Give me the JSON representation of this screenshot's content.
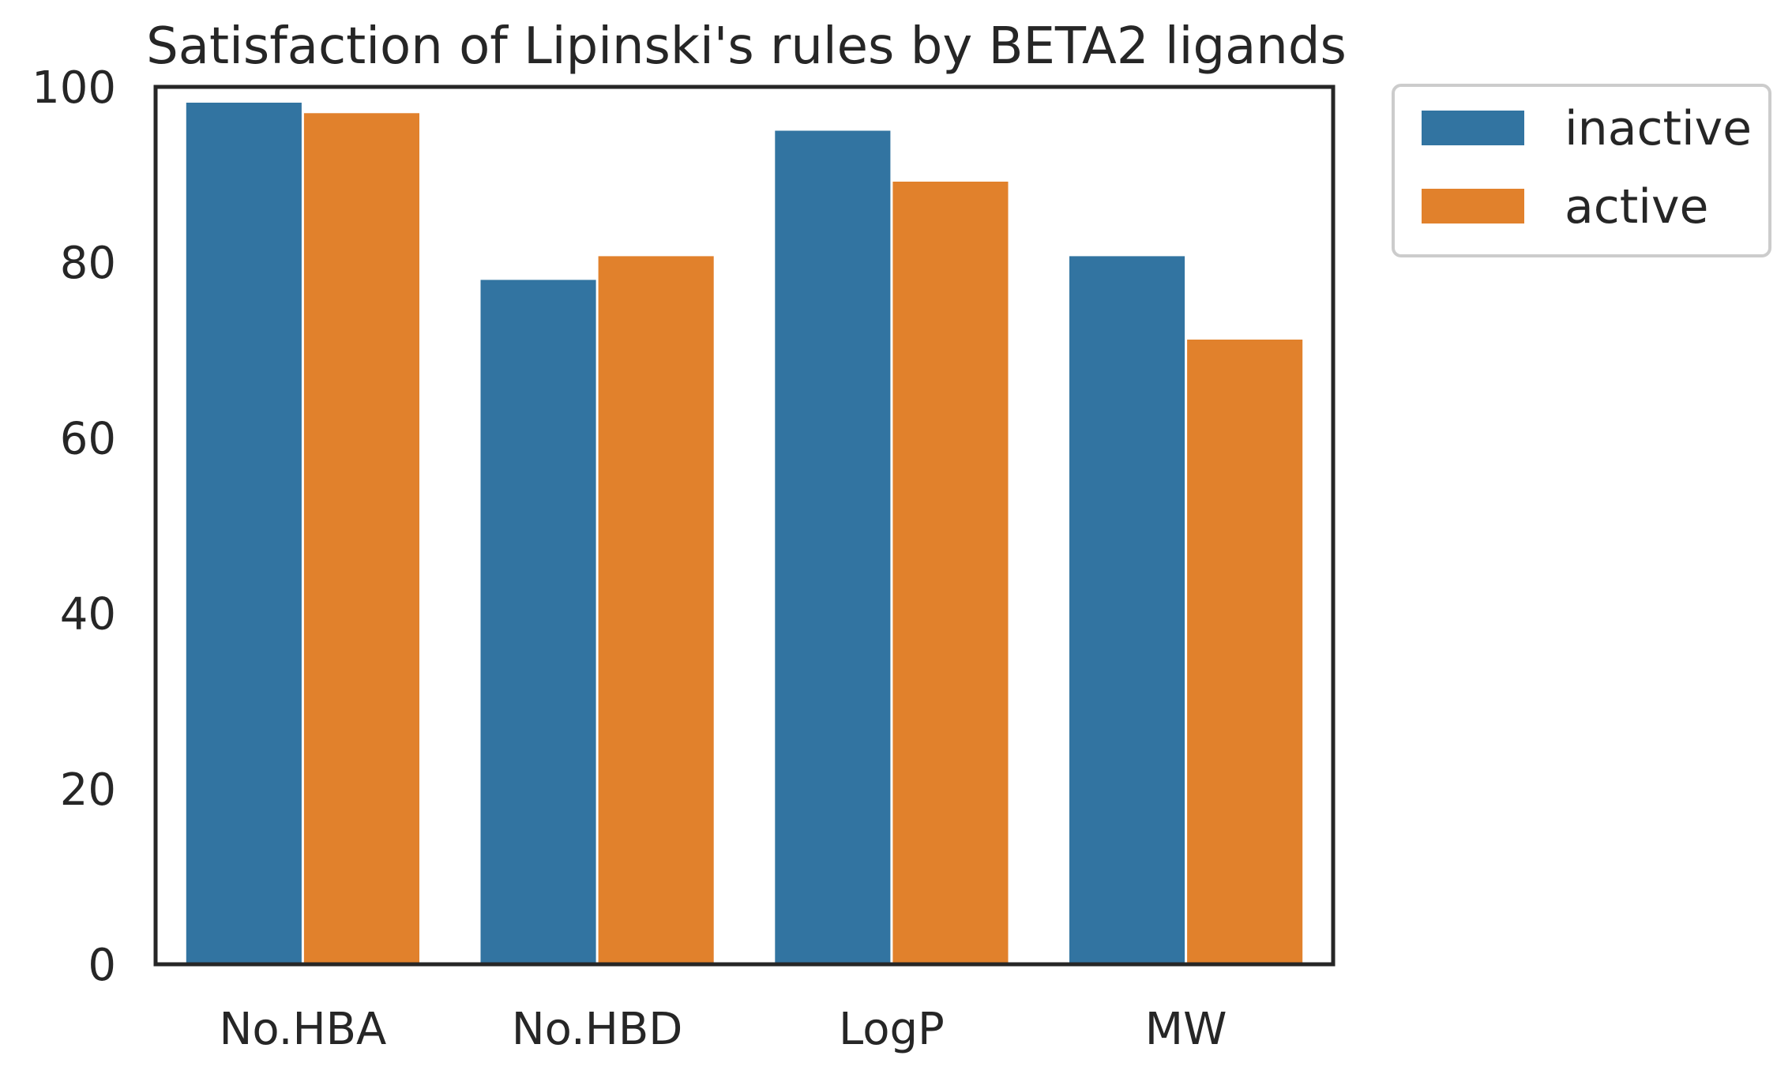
{
  "chart_data": {
    "type": "bar",
    "title": "Satisfaction of Lipinski's rules by BETA2 ligands",
    "xlabel": "",
    "ylabel": "",
    "categories": [
      "No.HBA",
      "No.HBD",
      "LogP",
      "MW"
    ],
    "series": [
      {
        "name": "inactive",
        "color": "#3274a1",
        "values": [
          98.2,
          78.0,
          95.0,
          80.7
        ]
      },
      {
        "name": "active",
        "color": "#e1812c",
        "values": [
          97.0,
          80.7,
          89.2,
          71.2
        ]
      }
    ],
    "ylim": [
      0,
      100
    ],
    "yticks": [
      "0",
      "20",
      "40",
      "60",
      "80",
      "100"
    ],
    "grid": false,
    "legend_position": "outside-top-right"
  }
}
